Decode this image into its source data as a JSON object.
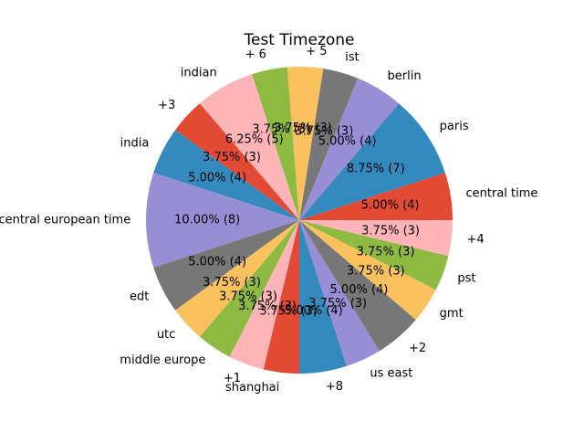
{
  "chart_data": {
    "type": "pie",
    "title": "Test Timezone",
    "start_angle_deg": 0,
    "direction": "counterclockwise",
    "slices": [
      {
        "label": "central time",
        "count": 4,
        "percent": "5.00%",
        "color": "#E24A33"
      },
      {
        "label": "paris",
        "count": 7,
        "percent": "8.75%",
        "color": "#348ABD"
      },
      {
        "label": "berlin",
        "count": 4,
        "percent": "5.00%",
        "color": "#988ED5"
      },
      {
        "label": "ist",
        "count": 3,
        "percent": "3.75%",
        "color": "#777777"
      },
      {
        "label": "+ 5",
        "count": 3,
        "percent": "3.75%",
        "color": "#FBC15E"
      },
      {
        "label": "+ 6",
        "count": 3,
        "percent": "3.75%",
        "color": "#8EBA42"
      },
      {
        "label": "indian",
        "count": 5,
        "percent": "6.25%",
        "color": "#FFB5B8"
      },
      {
        "label": "+3",
        "count": 3,
        "percent": "3.75%",
        "color": "#E24A33"
      },
      {
        "label": "india",
        "count": 4,
        "percent": "5.00%",
        "color": "#348ABD"
      },
      {
        "label": "central european time",
        "count": 8,
        "percent": "10.00%",
        "color": "#988ED5"
      },
      {
        "label": "edt",
        "count": 4,
        "percent": "5.00%",
        "color": "#777777"
      },
      {
        "label": "utc",
        "count": 3,
        "percent": "3.75%",
        "color": "#FBC15E"
      },
      {
        "label": "middle europe",
        "count": 3,
        "percent": "3.75%",
        "color": "#8EBA42"
      },
      {
        "label": "+1",
        "count": 3,
        "percent": "3.75%",
        "color": "#FFB5B8"
      },
      {
        "label": "shanghai",
        "count": 3,
        "percent": "3.75%",
        "color": "#E24A33"
      },
      {
        "label": "+8",
        "count": 4,
        "percent": "5.00%",
        "color": "#348ABD"
      },
      {
        "label": "us east",
        "count": 3,
        "percent": "3.75%",
        "color": "#988ED5"
      },
      {
        "label": "+2",
        "count": 4,
        "percent": "5.00%",
        "color": "#777777"
      },
      {
        "label": "gmt",
        "count": 3,
        "percent": "3.75%",
        "color": "#FBC15E"
      },
      {
        "label": "pst",
        "count": 3,
        "percent": "3.75%",
        "color": "#8EBA42"
      },
      {
        "label": "+4",
        "count": 3,
        "percent": "3.75%",
        "color": "#FFB5B8"
      }
    ]
  }
}
